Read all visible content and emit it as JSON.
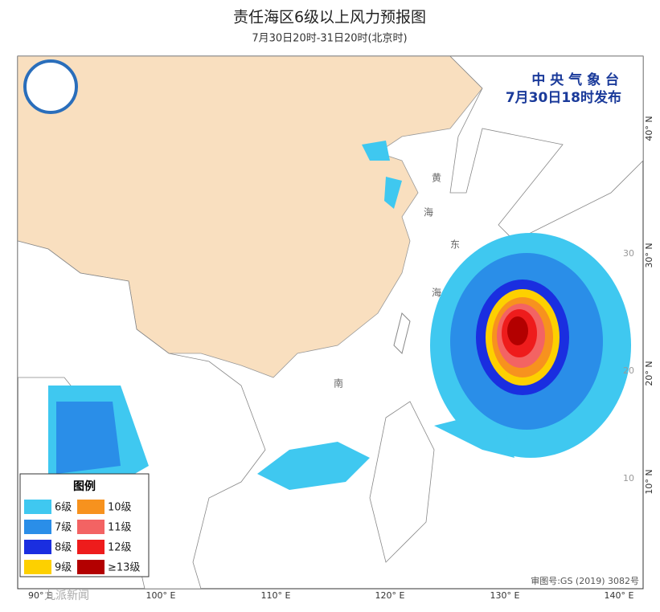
{
  "header": {
    "title": "责任海区6级以上风力预报图",
    "subtitle": "7月30日20时-31日20时(北京时)"
  },
  "issuer": {
    "agency": "中 央 气 象 台",
    "issued": "7月30日18时发布"
  },
  "map": {
    "lon_labels": [
      "90° E",
      "100° E",
      "110° E",
      "120° E",
      "130° E",
      "140° E"
    ],
    "lat_labels": [
      "40° N",
      "30° N",
      "20° N",
      "10° N"
    ],
    "inner_lat_labels": [
      "30",
      "20",
      "10"
    ],
    "sea_labels": [
      "黄",
      "海",
      "东",
      "海",
      "南"
    ],
    "approval": "审图号:GS (2019) 3082号",
    "watermark": "九派新闻"
  },
  "legend": {
    "title": "图例",
    "items": [
      {
        "label": "6级",
        "color": "#3fc8f0"
      },
      {
        "label": "10级",
        "color": "#f7921e"
      },
      {
        "label": "7级",
        "color": "#2a8ee8"
      },
      {
        "label": "11级",
        "color": "#f36363"
      },
      {
        "label": "8级",
        "color": "#1a2ee0"
      },
      {
        "label": "12级",
        "color": "#ee1c1c"
      },
      {
        "label": "9级",
        "color": "#fdd000"
      },
      {
        "label": "≥13级",
        "color": "#b30000"
      }
    ]
  }
}
